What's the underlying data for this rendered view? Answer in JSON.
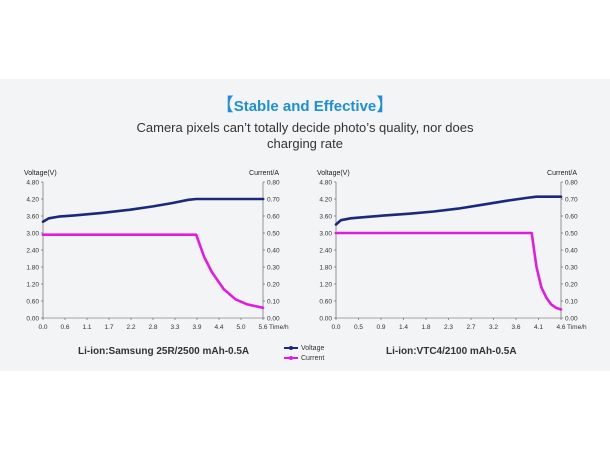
{
  "header": {
    "title": "Stable and Effective",
    "subtitle_line1": "Camera pixels can’t totally decide photo’s quality, nor does",
    "subtitle_line2": "charging rate"
  },
  "legend": {
    "voltage": "Voltage",
    "current": "Current",
    "voltage_color": "#1a2a7a",
    "current_color": "#e21be0"
  },
  "chart_data": [
    {
      "type": "line",
      "caption": "Li-ion:Samsung 25R/2500 mAh-0.5A",
      "ylabel_left": "Voltage(V)",
      "ylabel_right": "Current/A",
      "xlabel": "Time/h",
      "x_ticks": [
        "0.0",
        "0.6",
        "1.1",
        "1.7",
        "2.2",
        "2.8",
        "3.3",
        "3.9",
        "4.4",
        "5.0",
        "5.6"
      ],
      "y_left_ticks": [
        "4.80",
        "4.20",
        "3.60",
        "3.00",
        "2.40",
        "1.80",
        "1.20",
        "0.60",
        "0.00"
      ],
      "y_right_ticks": [
        "0.80",
        "0.70",
        "0.60",
        "0.50",
        "0.40",
        "0.30",
        "0.20",
        "0.10",
        "0.00"
      ],
      "xlim": [
        0,
        5.6
      ],
      "ylim_left": [
        0,
        4.8
      ],
      "ylim_right": [
        0,
        0.8
      ],
      "series": [
        {
          "name": "Voltage",
          "axis": "left",
          "x": [
            0.0,
            0.15,
            0.4,
            0.8,
            1.5,
            2.2,
            2.8,
            3.3,
            3.7,
            3.9,
            4.2,
            4.6,
            5.0,
            5.6
          ],
          "y": [
            3.4,
            3.52,
            3.58,
            3.62,
            3.71,
            3.82,
            3.94,
            4.06,
            4.17,
            4.2,
            4.2,
            4.2,
            4.2,
            4.2
          ]
        },
        {
          "name": "Current",
          "axis": "right",
          "x": [
            0.0,
            1.0,
            2.0,
            3.0,
            3.5,
            3.9,
            4.1,
            4.3,
            4.6,
            4.9,
            5.2,
            5.6
          ],
          "y": [
            0.49,
            0.49,
            0.49,
            0.49,
            0.49,
            0.49,
            0.36,
            0.27,
            0.17,
            0.11,
            0.08,
            0.06
          ]
        }
      ]
    },
    {
      "type": "line",
      "caption": "Li-ion:VTC4/2100 mAh-0.5A",
      "ylabel_left": "Voltage(V)",
      "ylabel_right": "Current/A",
      "xlabel": "Time/h",
      "x_ticks": [
        "0.0",
        "0.5",
        "0.9",
        "1.4",
        "1.8",
        "2.3",
        "2.7",
        "3.2",
        "3.6",
        "4.1",
        "4.6"
      ],
      "y_left_ticks": [
        "4.80",
        "4.20",
        "3.60",
        "3.00",
        "2.40",
        "1.80",
        "1.20",
        "0.60",
        "0.00"
      ],
      "y_right_ticks": [
        "0.80",
        "0.70",
        "0.60",
        "0.50",
        "0.40",
        "0.30",
        "0.20",
        "0.10",
        "0.00"
      ],
      "xlim": [
        0,
        4.6
      ],
      "ylim_left": [
        0,
        4.8
      ],
      "ylim_right": [
        0,
        0.8
      ],
      "series": [
        {
          "name": "Voltage",
          "axis": "left",
          "x": [
            0.0,
            0.1,
            0.3,
            0.6,
            1.0,
            1.5,
            2.0,
            2.5,
            3.0,
            3.5,
            3.9,
            4.1,
            4.4,
            4.6
          ],
          "y": [
            3.3,
            3.45,
            3.52,
            3.56,
            3.62,
            3.68,
            3.76,
            3.86,
            4.0,
            4.14,
            4.24,
            4.28,
            4.28,
            4.28
          ]
        },
        {
          "name": "Current",
          "axis": "right",
          "x": [
            0.0,
            1.0,
            2.0,
            3.0,
            3.6,
            4.0,
            4.1,
            4.2,
            4.3,
            4.4,
            4.5,
            4.6
          ],
          "y": [
            0.5,
            0.5,
            0.5,
            0.5,
            0.5,
            0.5,
            0.3,
            0.18,
            0.12,
            0.08,
            0.06,
            0.05
          ]
        }
      ]
    }
  ]
}
